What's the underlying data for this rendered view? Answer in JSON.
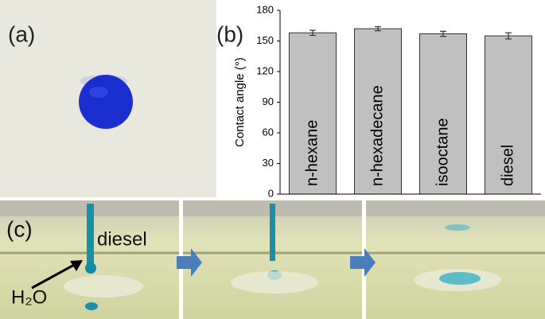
{
  "panel_labels": [
    "(a)",
    "(b)",
    "(c)"
  ],
  "annotations": {
    "liquid": "diesel",
    "drop": "H₂O"
  },
  "chart_data": {
    "type": "bar",
    "ylabel": "Contact angle (°)",
    "categories": [
      "n-hexane",
      "n-hexadecane",
      "isooctane",
      "diesel"
    ],
    "values": [
      158,
      162,
      157,
      155
    ],
    "errors": [
      2.5,
      2,
      2.5,
      3
    ],
    "color": "#c0c0c0",
    "ylim": [
      0,
      180
    ],
    "yticks": [
      0,
      30,
      60,
      90,
      120,
      150,
      180
    ]
  }
}
